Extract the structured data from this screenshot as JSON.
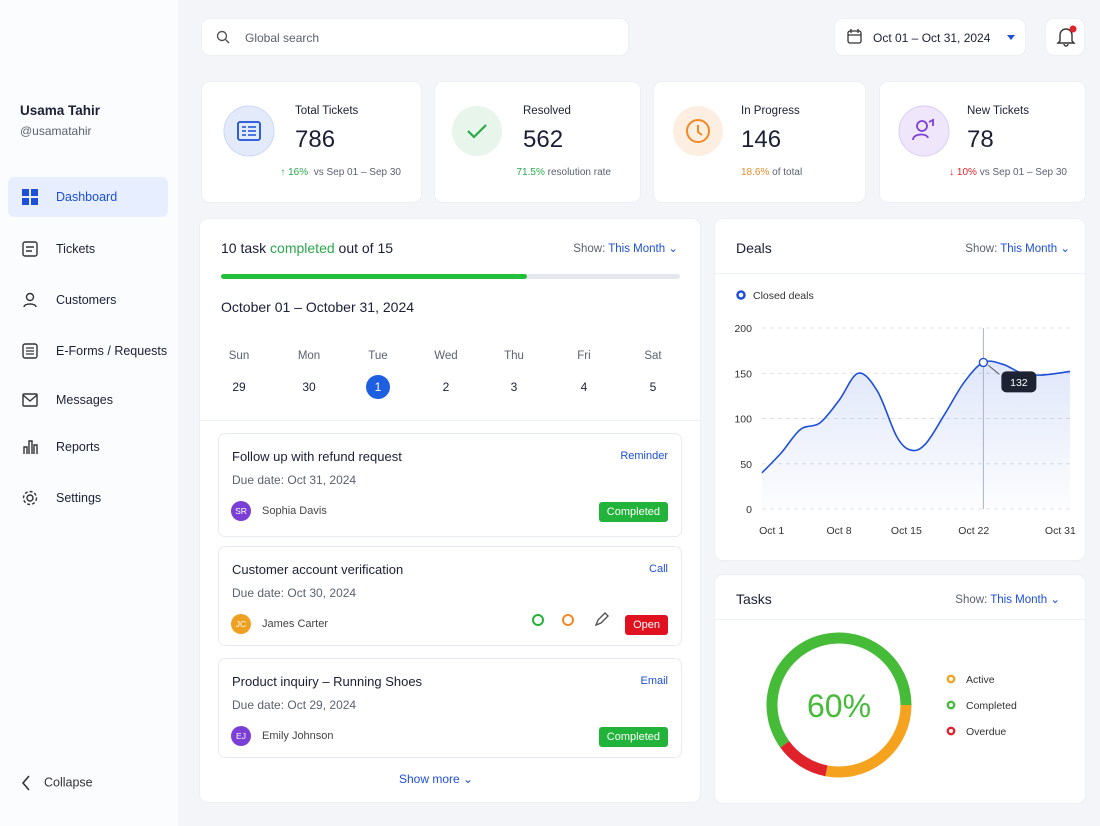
{
  "sidebar": {
    "user": {
      "name": "Usama Tahir",
      "handle": "@usamatahir"
    },
    "nav": [
      "Dashboard",
      "Tickets",
      "Customers",
      "E-Forms / Requests",
      "Messages",
      "Reports",
      "Settings"
    ],
    "collapse": "Collapse"
  },
  "topbar": {
    "search_placeholder": "Global search",
    "date_range": "Oct 01 – Oct 31, 2024"
  },
  "stats": [
    {
      "label": "Total Tickets",
      "value": 786,
      "change": "16%",
      "note": "vs Sep 01 – Sep 30"
    },
    {
      "label": "Resolved",
      "value": 562,
      "change": "71.5%",
      "note": "resolution rate"
    },
    {
      "label": "In Progress",
      "value": 146,
      "change": "18.6%",
      "note": "of total"
    },
    {
      "label": "New Tickets",
      "value": 78,
      "change": "10%",
      "note": "vs Sep 01 – Sep 30"
    }
  ],
  "tasks_panel": {
    "count": 10,
    "unit": "task",
    "status": "completed",
    "out_of": "out of",
    "total": 15,
    "show_label": "Show:",
    "show_value": "This Month",
    "range": "October 01 – October 31, 2024",
    "weekdays": [
      "Sun",
      "Mon",
      "Tue",
      "Wed",
      "Thu",
      "Fri",
      "Sat"
    ],
    "dates": [
      29,
      30,
      1,
      2,
      3,
      4,
      5
    ],
    "items": [
      {
        "title": "Follow up with refund request",
        "due": "Due date: Oct 31, 2024",
        "type": "Reminder",
        "initials": "SR",
        "assignee": "Sophia Davis",
        "status": "Completed"
      },
      {
        "title": "Customer account verification",
        "due": "Due date: Oct 30, 2024",
        "type": "Call",
        "initials": "JC",
        "assignee": "James Carter",
        "status": "Open"
      },
      {
        "title": "Product inquiry – Running Shoes",
        "due": "Due date: Oct 29, 2024",
        "type": "Email",
        "initials": "EJ",
        "assignee": "Emily Johnson",
        "status": "Completed"
      }
    ],
    "show_more": "Show more"
  },
  "deals": {
    "title": "Deals",
    "show_label": "Show:",
    "show_value": "This Month",
    "chart": {
      "type": "line",
      "series": [
        {
          "name": "Closed deals",
          "color": "#1d4fd8",
          "x": [
            0,
            2,
            4,
            6,
            8,
            10,
            12,
            14,
            15.5,
            17,
            19,
            21,
            23,
            25,
            27,
            29,
            32
          ],
          "values": [
            40,
            62,
            88,
            95,
            120,
            150,
            130,
            80,
            65,
            72,
            105,
            140,
            162,
            160,
            150,
            148,
            152
          ]
        }
      ],
      "xlim": [
        0,
        32
      ],
      "xticks": [
        {
          "value": 1,
          "label": "Oct 1"
        },
        {
          "value": 8,
          "label": "Oct 8"
        },
        {
          "value": 15,
          "label": "Oct 15"
        },
        {
          "value": 22,
          "label": "Oct 22"
        },
        {
          "value": 31,
          "label": "Oct 31"
        }
      ],
      "ylim": [
        0,
        200
      ],
      "yticks": [
        0,
        50,
        100,
        150,
        200
      ],
      "grid": true,
      "annotation": "132"
    }
  },
  "tasks_chart": {
    "title": "Tasks",
    "show_label": "Show:",
    "show_value": "This Month",
    "chart": {
      "type": "pie",
      "center_label": "60%",
      "categories": [
        "Active",
        "Completed",
        "Overdue"
      ],
      "values": [
        28,
        60,
        12
      ],
      "colors": [
        "#f5a31f",
        "#45bb38",
        "#e0222b"
      ]
    }
  }
}
